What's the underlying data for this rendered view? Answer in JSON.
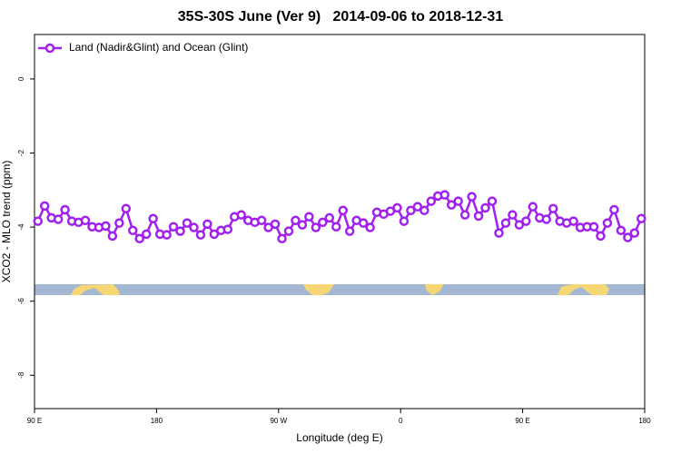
{
  "chart_data": {
    "type": "line",
    "title": "35S-30S June (Ver 9)   2014-09-06 to 2018-12-31",
    "xlabel": "Longitude (deg E)",
    "ylabel": "XCO2 - MLO trend (ppm)",
    "xlim": [
      90,
      540
    ],
    "ylim": [
      -8.9,
      1.2
    ],
    "xticks": [
      {
        "value": 90,
        "label": "90 E"
      },
      180,
      {
        "value": 270,
        "label": "90 W"
      },
      {
        "value": 360,
        "label": "0"
      },
      {
        "value": 450,
        "label": "90 E"
      },
      {
        "value": 540,
        "label": "180"
      }
    ],
    "yticks": [
      0,
      -2,
      -4,
      -6,
      -8
    ],
    "legend": "top-left",
    "x": [
      92.5,
      97.5,
      102.5,
      107.5,
      112.5,
      117.5,
      122.5,
      127.5,
      132.5,
      137.5,
      142.5,
      147.5,
      152.5,
      157.5,
      162.5,
      167.5,
      172.5,
      177.5,
      182.5,
      187.5,
      192.5,
      197.5,
      202.5,
      207.5,
      212.5,
      217.5,
      222.5,
      227.5,
      232.5,
      237.5,
      242.5,
      247.5,
      252.5,
      257.5,
      262.5,
      267.5,
      272.5,
      277.5,
      282.5,
      287.5,
      292.5,
      297.5,
      302.5,
      307.5,
      312.5,
      317.5,
      322.5,
      327.5,
      332.5,
      337.5,
      342.5,
      347.5,
      352.5,
      357.5,
      362.5,
      367.5,
      372.5,
      377.5,
      382.5,
      387.5,
      392.5,
      397.5,
      402.5,
      407.5,
      412.5,
      417.5,
      422.5,
      427.5,
      432.5,
      437.5,
      442.5,
      447.5,
      452.5,
      457.5,
      462.5,
      467.5,
      472.5,
      477.5,
      482.5,
      487.5,
      492.5,
      497.5,
      502.5,
      507.5,
      512.5,
      517.5,
      522.5,
      527.5,
      532.5,
      537.5
    ],
    "series": [
      {
        "name": "Land (Nadir&Glint) and Ocean (Glint)",
        "color": "#a020f0",
        "values": [
          -3.84,
          -3.43,
          -3.75,
          -3.79,
          -3.53,
          -3.84,
          -3.87,
          -3.82,
          -3.99,
          -4.01,
          -3.97,
          -4.24,
          -3.89,
          -3.5,
          -4.09,
          -4.31,
          -4.19,
          -3.77,
          -4.19,
          -4.21,
          -3.99,
          -4.11,
          -3.89,
          -4.01,
          -4.21,
          -3.92,
          -4.19,
          -4.09,
          -4.06,
          -3.72,
          -3.67,
          -3.82,
          -3.87,
          -3.82,
          -4.01,
          -3.92,
          -4.31,
          -4.11,
          -3.82,
          -3.94,
          -3.72,
          -4.01,
          -3.87,
          -3.75,
          -3.99,
          -3.55,
          -4.11,
          -3.82,
          -3.89,
          -4.01,
          -3.6,
          -3.65,
          -3.57,
          -3.48,
          -3.84,
          -3.55,
          -3.45,
          -3.55,
          -3.3,
          -3.16,
          -3.13,
          -3.4,
          -3.3,
          -3.67,
          -3.18,
          -3.7,
          -3.48,
          -3.3,
          -4.16,
          -3.89,
          -3.67,
          -3.94,
          -3.84,
          -3.45,
          -3.75,
          -3.79,
          -3.5,
          -3.84,
          -3.89,
          -3.84,
          -4.01,
          -3.99,
          -3.99,
          -4.24,
          -3.89,
          -3.53,
          -4.09,
          -4.28,
          -4.16,
          -3.77
        ]
      }
    ]
  }
}
